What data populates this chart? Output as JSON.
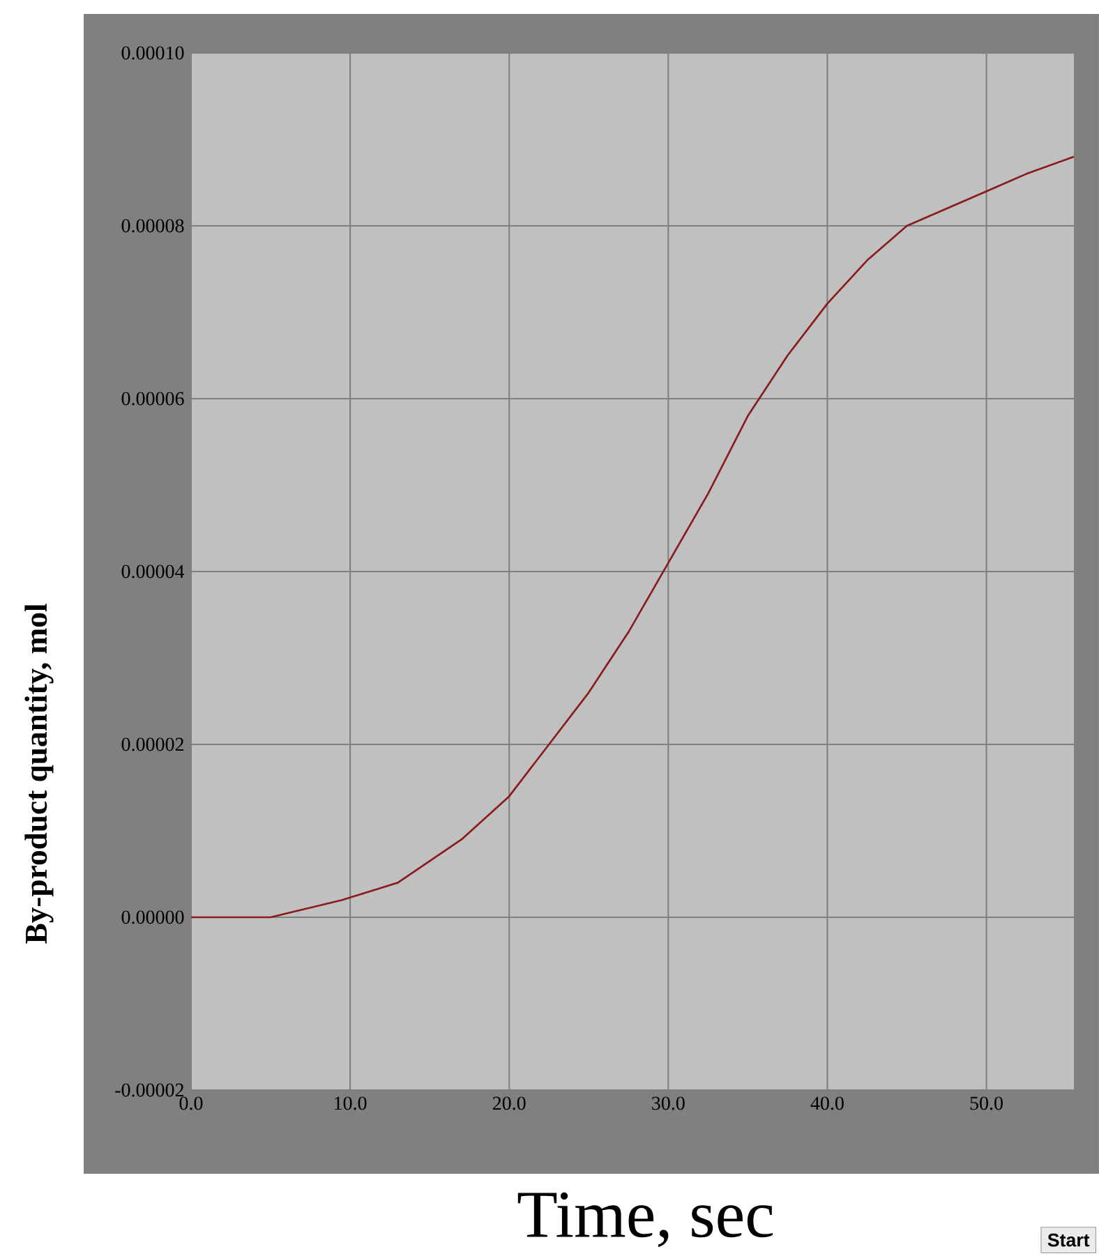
{
  "chart_data": {
    "type": "line",
    "xlabel": "Time, sec",
    "ylabel": "By-product quantity, mol",
    "annotations": [
      "Start"
    ],
    "x": [
      0,
      5,
      9.5,
      13,
      17,
      20,
      22.5,
      25,
      27.5,
      30,
      32.5,
      35,
      37.5,
      40,
      42.5,
      45,
      47.5,
      50,
      52.5,
      55.5
    ],
    "series": [
      {
        "color": "#8b1a1a",
        "values": [
          0,
          0,
          2e-06,
          4e-06,
          9e-06,
          1.4e-05,
          2e-05,
          2.6e-05,
          3.3e-05,
          4.1e-05,
          4.9e-05,
          5.8e-05,
          6.5e-05,
          7.1e-05,
          7.6e-05,
          8e-05,
          8.2e-05,
          8.4e-05,
          8.6e-05,
          8.8e-05
        ]
      }
    ],
    "xlim": [
      0,
      55.5
    ],
    "ylim": [
      -2e-05,
      0.0001
    ],
    "xticks": [
      {
        "value": 0,
        "label": "0.0"
      },
      {
        "value": 10,
        "label": "10.0"
      },
      {
        "value": 20,
        "label": "20.0"
      },
      {
        "value": 30,
        "label": "30.0"
      },
      {
        "value": 40,
        "label": "40.0"
      },
      {
        "value": 50,
        "label": "50.0"
      }
    ],
    "yticks": [
      {
        "value": -2e-05,
        "label": "-0.00002"
      },
      {
        "value": 0,
        "label": "0.00000"
      },
      {
        "value": 2e-05,
        "label": "0.00002"
      },
      {
        "value": 4e-05,
        "label": "0.00004"
      },
      {
        "value": 6e-05,
        "label": "0.00006"
      },
      {
        "value": 8e-05,
        "label": "0.00008"
      },
      {
        "value": 0.0001,
        "label": "0.00010"
      }
    ],
    "grid": true,
    "marker": "none",
    "line_style": "solid"
  }
}
